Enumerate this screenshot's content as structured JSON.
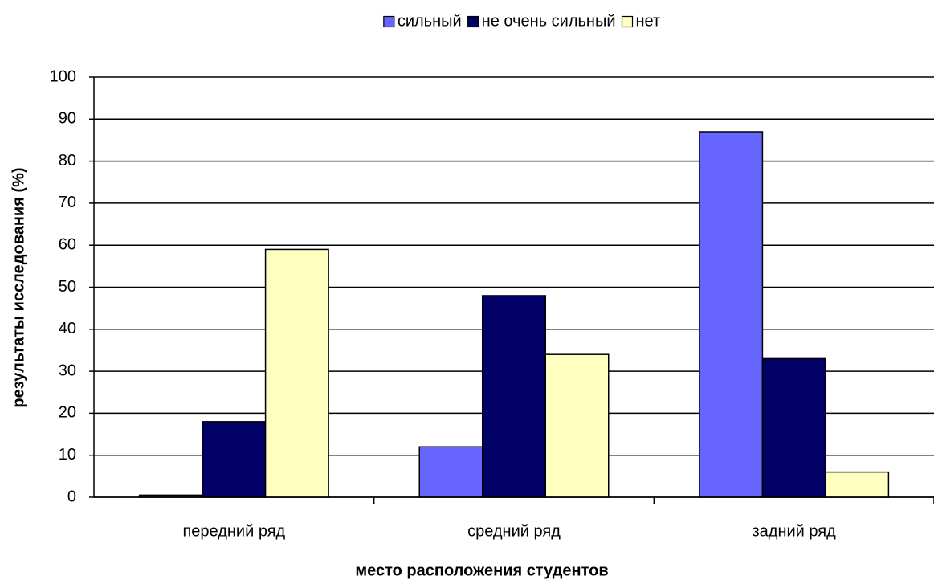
{
  "chart_data": {
    "type": "bar",
    "categories": [
      "передний ряд",
      "средний ряд",
      "задний ряд"
    ],
    "series": [
      {
        "name": "сильный",
        "color": "#6666ff",
        "values": [
          0.5,
          12,
          87
        ]
      },
      {
        "name": "не очень сильный",
        "color": "#000066",
        "values": [
          18,
          48,
          33
        ]
      },
      {
        "name": "нет",
        "color": "#ffffc0",
        "values": [
          59,
          34,
          6
        ]
      }
    ],
    "x_label": "место расположения студентов",
    "y_label": "результаты исследования (%)",
    "ylim": [
      0,
      100
    ],
    "yticks": [
      0,
      10,
      20,
      30,
      40,
      50,
      60,
      70,
      80,
      90,
      100
    ],
    "grid": true,
    "legend": "top"
  }
}
